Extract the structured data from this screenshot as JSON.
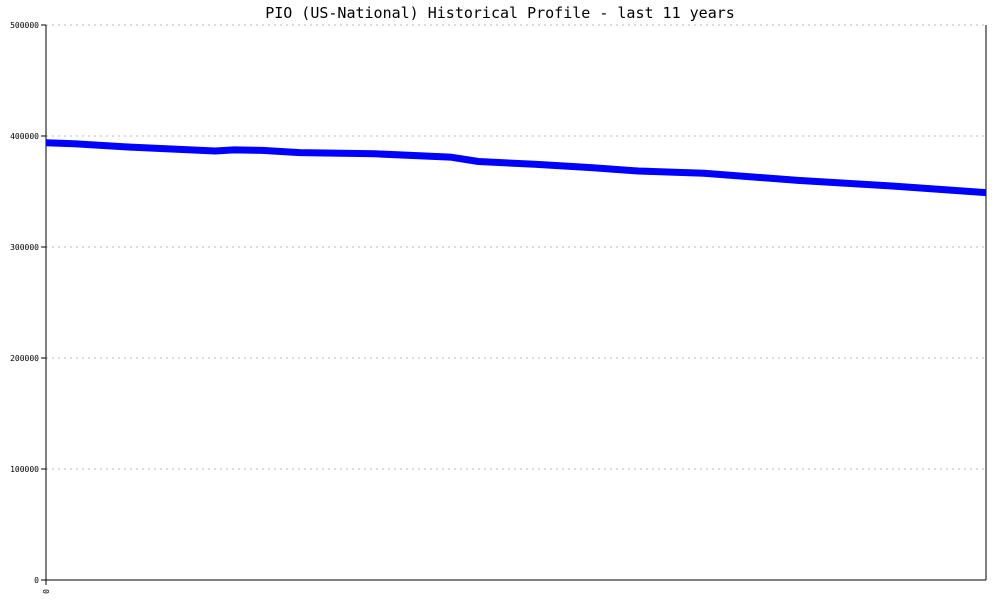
{
  "chart_data": {
    "type": "line",
    "title": "PIO (US-National) Historical Profile - last 11 years",
    "xlabel": "",
    "ylabel": "",
    "ylim": [
      0,
      500000
    ],
    "xlim": [
      0,
      1
    ],
    "y_ticks": [
      0,
      100000,
      200000,
      300000,
      400000,
      500000
    ],
    "y_tick_labels": [
      "0",
      "100000",
      "200000",
      "300000",
      "400000",
      "500000"
    ],
    "x_ticks": [
      0
    ],
    "x_tick_labels": [
      "0"
    ],
    "grid": true,
    "series": [
      {
        "color": "#0000ff",
        "x": [
          0,
          0.03,
          0.09,
          0.18,
          0.2,
          0.23,
          0.27,
          0.35,
          0.43,
          0.46,
          0.52,
          0.58,
          0.63,
          0.7,
          0.8,
          0.9,
          1.0
        ],
        "y": [
          394000,
          393000,
          390000,
          386500,
          387500,
          387000,
          385000,
          384000,
          381000,
          377000,
          374500,
          371500,
          368500,
          366500,
          360000,
          355000,
          349000
        ]
      }
    ]
  }
}
